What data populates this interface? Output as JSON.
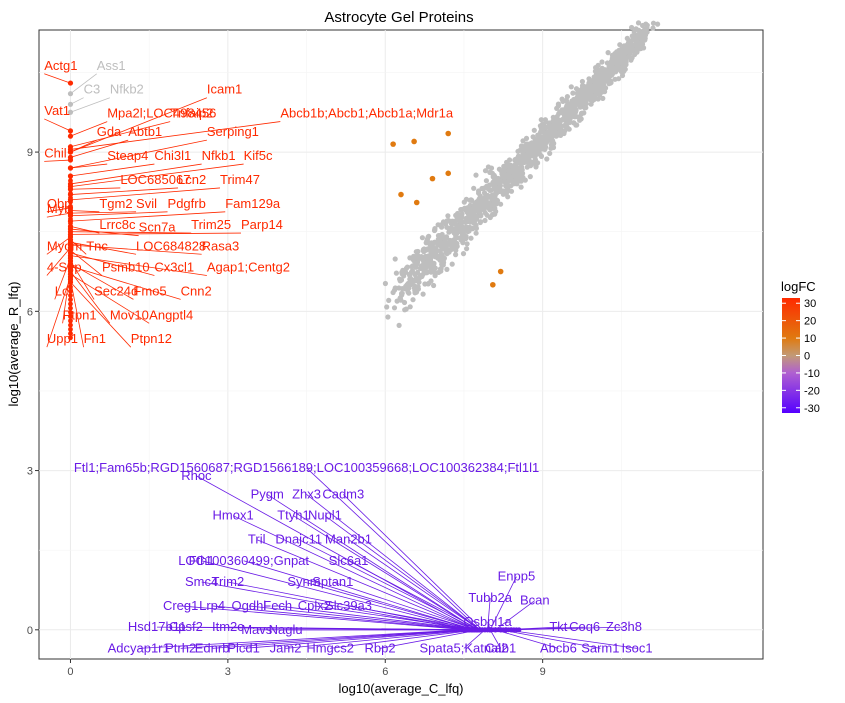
{
  "chart_data": {
    "type": "scatter",
    "title": "Astrocyte Gel Proteins",
    "xlabel": "log10(average_C_lfq)",
    "ylabel": "log10(average_R_lfq)",
    "xlim": [
      -0.6,
      13.2
    ],
    "ylim": [
      -0.55,
      11.3
    ],
    "x_ticks": [
      0,
      3,
      6,
      9
    ],
    "y_ticks": [
      0,
      3,
      6,
      9
    ],
    "grid": true,
    "legend": {
      "title": "logFC",
      "placement": "right",
      "ticks": [
        30,
        20,
        10,
        0,
        -10,
        -20,
        -30
      ],
      "min": -33,
      "max": 33,
      "colors": [
        "#5500ff",
        "#ff3300"
      ]
    },
    "colors": {
      "high": "#ff2a00",
      "mid": "#e07a10",
      "low": "#6a1be6",
      "unchanged": "#bebebe"
    },
    "cloud": {
      "x_start": 6.2,
      "x_end": 10.9,
      "intercept": -0.05,
      "slope": 1.03,
      "spread": 0.45,
      "n": 1400
    },
    "orange_points": [
      {
        "x": 6.15,
        "y": 9.15,
        "logFC": 9
      },
      {
        "x": 6.55,
        "y": 9.2,
        "logFC": 9
      },
      {
        "x": 6.9,
        "y": 8.5,
        "logFC": 5
      },
      {
        "x": 7.2,
        "y": 8.6,
        "logFC": 5
      },
      {
        "x": 6.3,
        "y": 8.2,
        "logFC": 6
      },
      {
        "x": 6.6,
        "y": 8.05,
        "logFC": 6
      },
      {
        "x": 7.2,
        "y": 9.35,
        "logFC": 7
      },
      {
        "x": 8.2,
        "y": 6.75,
        "logFC": 4
      },
      {
        "x": 8.05,
        "y": 6.5,
        "logFC": 5
      }
    ],
    "high_labels": [
      {
        "text": "Actg1",
        "x": -0.5,
        "y": 10.55,
        "gy": 10.3,
        "logFC": 29
      },
      {
        "text": "Ass1",
        "x": 0.5,
        "y": 10.55,
        "gy": 10.1,
        "logFC": 1
      },
      {
        "text": "C3",
        "x": 0.25,
        "y": 10.1,
        "gy": 9.9,
        "logFC": 1
      },
      {
        "text": "Nfkb2",
        "x": 0.75,
        "y": 10.1,
        "gy": 9.75,
        "logFC": 1
      },
      {
        "text": "Icam1",
        "x": 2.6,
        "y": 10.1,
        "gy": 9.0,
        "logFC": 29
      },
      {
        "text": "Vat1",
        "x": -0.5,
        "y": 9.7,
        "gy": 9.4,
        "logFC": 29
      },
      {
        "text": "Mpa2l;LOC498456",
        "x": 0.7,
        "y": 9.65,
        "gy": 9.3,
        "logFC": 29
      },
      {
        "text": "Tnfaip2",
        "x": 1.9,
        "y": 9.65,
        "gy": 9.1,
        "logFC": 29
      },
      {
        "text": "Abcb1b;Abcb1;Abcb1a;Mdr1a",
        "x": 4.0,
        "y": 9.65,
        "gy": 9.05,
        "logFC": 29
      },
      {
        "text": "Gda",
        "x": 0.5,
        "y": 9.3,
        "gy": 9.0,
        "logFC": 29
      },
      {
        "text": "Abtb1",
        "x": 1.1,
        "y": 9.3,
        "gy": 8.9,
        "logFC": 29
      },
      {
        "text": "Serping1",
        "x": 2.6,
        "y": 9.3,
        "gy": 8.7,
        "logFC": 29
      },
      {
        "text": "Chil",
        "x": -0.5,
        "y": 8.9,
        "gy": 8.85,
        "logFC": 29
      },
      {
        "text": "Steap4",
        "x": 0.7,
        "y": 8.85,
        "gy": 8.7,
        "logFC": 29
      },
      {
        "text": "Chi3l1",
        "x": 1.6,
        "y": 8.85,
        "gy": 8.55,
        "logFC": 29
      },
      {
        "text": "Nfkb1",
        "x": 2.5,
        "y": 8.85,
        "gy": 8.4,
        "logFC": 29
      },
      {
        "text": "Kif5c",
        "x": 3.3,
        "y": 8.85,
        "gy": 8.35,
        "logFC": 29
      },
      {
        "text": "LOC685067",
        "x": 0.95,
        "y": 8.4,
        "gy": 8.3,
        "logFC": 29
      },
      {
        "text": "Lcn2",
        "x": 2.05,
        "y": 8.4,
        "gy": 8.2,
        "logFC": 29
      },
      {
        "text": "Trim47",
        "x": 2.85,
        "y": 8.4,
        "gy": 8.1,
        "logFC": 29
      },
      {
        "text": "Obp",
        "x": -0.45,
        "y": 7.95,
        "gy": 7.95,
        "logFC": 29
      },
      {
        "text": "Myb",
        "x": -0.45,
        "y": 7.85,
        "gy": 7.85,
        "logFC": 29
      },
      {
        "text": "Tgm2",
        "x": 0.55,
        "y": 7.95,
        "gy": 7.9,
        "logFC": 29
      },
      {
        "text": "Svil",
        "x": 1.25,
        "y": 7.95,
        "gy": 7.85,
        "logFC": 29
      },
      {
        "text": "Pdgfrb",
        "x": 1.85,
        "y": 7.95,
        "gy": 7.8,
        "logFC": 29
      },
      {
        "text": "Fam129a",
        "x": 2.95,
        "y": 7.95,
        "gy": 7.7,
        "logFC": 29
      },
      {
        "text": "Lrrc8c",
        "x": 0.55,
        "y": 7.55,
        "gy": 7.6,
        "logFC": 29
      },
      {
        "text": "Scn7a",
        "x": 1.3,
        "y": 7.5,
        "gy": 7.55,
        "logFC": 29
      },
      {
        "text": "Trim25",
        "x": 2.3,
        "y": 7.55,
        "gy": 7.5,
        "logFC": 29
      },
      {
        "text": "Parp14",
        "x": 3.25,
        "y": 7.55,
        "gy": 7.45,
        "logFC": 29
      },
      {
        "text": "Myom",
        "x": -0.45,
        "y": 7.15,
        "gy": 7.4,
        "logFC": 29
      },
      {
        "text": "Tnc",
        "x": 0.3,
        "y": 7.15,
        "gy": 7.35,
        "logFC": 29
      },
      {
        "text": "LOC684828",
        "x": 1.25,
        "y": 7.15,
        "gy": 7.3,
        "logFC": 29
      },
      {
        "text": "Rasa3",
        "x": 2.5,
        "y": 7.15,
        "gy": 7.25,
        "logFC": 29
      },
      {
        "text": "4-Sep",
        "x": -0.45,
        "y": 6.75,
        "gy": 7.2,
        "logFC": 29
      },
      {
        "text": "Psmb10",
        "x": 0.6,
        "y": 6.75,
        "gy": 7.15,
        "logFC": 29
      },
      {
        "text": "Cx3cl1",
        "x": 1.6,
        "y": 6.75,
        "gy": 7.1,
        "logFC": 29
      },
      {
        "text": "Agap1;Centg2",
        "x": 2.6,
        "y": 6.75,
        "gy": 7.05,
        "logFC": 29
      },
      {
        "text": "Lc",
        "x": -0.3,
        "y": 6.3,
        "gy": 7.0,
        "logFC": 29
      },
      {
        "text": "Sec24d",
        "x": 0.45,
        "y": 6.3,
        "gy": 6.95,
        "logFC": 29
      },
      {
        "text": "Fmo5",
        "x": 1.2,
        "y": 6.3,
        "gy": 6.9,
        "logFC": 29
      },
      {
        "text": "Cnn2",
        "x": 2.1,
        "y": 6.3,
        "gy": 6.85,
        "logFC": 29
      },
      {
        "text": "Ptpn1",
        "x": -0.15,
        "y": 5.85,
        "gy": 6.8,
        "logFC": 29
      },
      {
        "text": "Mov10",
        "x": 0.75,
        "y": 5.85,
        "gy": 6.75,
        "logFC": 29
      },
      {
        "text": "Angptl4",
        "x": 1.5,
        "y": 5.85,
        "gy": 6.7,
        "logFC": 29
      },
      {
        "text": "Upp1",
        "x": -0.45,
        "y": 5.4,
        "gy": 6.65,
        "logFC": 29
      },
      {
        "text": "Fn1",
        "x": 0.25,
        "y": 5.4,
        "gy": 6.6,
        "logFC": 29
      },
      {
        "text": "Ptpn12",
        "x": 1.15,
        "y": 5.4,
        "gy": 6.55,
        "logFC": 29
      }
    ],
    "low_labels": [
      {
        "text": "Ftl1;Fam65b;RGD1560687;RGD1566189;LOC100359668;LOC100362384;Ftl1l1",
        "x": 4.5,
        "y": 3.05,
        "gx": 7.8,
        "logFC": -30
      },
      {
        "text": "Rhoc",
        "x": 2.4,
        "y": 2.9,
        "gx": 7.7,
        "logFC": -30
      },
      {
        "text": "Pygm",
        "x": 3.75,
        "y": 2.55,
        "gx": 7.75,
        "logFC": -30
      },
      {
        "text": "Zhx3",
        "x": 4.5,
        "y": 2.55,
        "gx": 7.8,
        "logFC": -30
      },
      {
        "text": "Cadm3",
        "x": 5.2,
        "y": 2.55,
        "gx": 7.85,
        "logFC": -30
      },
      {
        "text": "Hmox1",
        "x": 3.1,
        "y": 2.15,
        "gx": 7.7,
        "logFC": -30
      },
      {
        "text": "Ttyh1",
        "x": 4.25,
        "y": 2.15,
        "gx": 7.75,
        "logFC": -30
      },
      {
        "text": "Nupl1",
        "x": 4.85,
        "y": 2.15,
        "gx": 7.8,
        "logFC": -30
      },
      {
        "text": "Tril",
        "x": 3.55,
        "y": 1.7,
        "gx": 7.7,
        "logFC": -30
      },
      {
        "text": "Dnajc11",
        "x": 4.35,
        "y": 1.7,
        "gx": 7.75,
        "logFC": -30
      },
      {
        "text": "Man2b1",
        "x": 5.3,
        "y": 1.7,
        "gx": 7.8,
        "logFC": -30
      },
      {
        "text": "Fth1",
        "x": 2.5,
        "y": 1.3,
        "gx": 7.65,
        "logFC": -30
      },
      {
        "text": "LOC100360499;Gnpat",
        "x": 3.3,
        "y": 1.3,
        "gx": 7.7,
        "logFC": -30
      },
      {
        "text": "Slc6a1",
        "x": 5.3,
        "y": 1.3,
        "gx": 7.8,
        "logFC": -30
      },
      {
        "text": "Smc4",
        "x": 2.5,
        "y": 0.9,
        "gx": 7.6,
        "logFC": -30
      },
      {
        "text": "Trim2",
        "x": 3.0,
        "y": 0.9,
        "gx": 7.65,
        "logFC": -30
      },
      {
        "text": "Synm",
        "x": 4.45,
        "y": 0.9,
        "gx": 7.7,
        "logFC": -30
      },
      {
        "text": "Sptan1",
        "x": 5.0,
        "y": 0.9,
        "gx": 7.75,
        "logFC": -30
      },
      {
        "text": "Enpp5",
        "x": 8.5,
        "y": 1.0,
        "gx": 8.0,
        "logFC": -30
      },
      {
        "text": "Tubb2a",
        "x": 8.0,
        "y": 0.6,
        "gx": 7.95,
        "logFC": -30
      },
      {
        "text": "Bcan",
        "x": 8.85,
        "y": 0.55,
        "gx": 8.1,
        "logFC": -30
      },
      {
        "text": "Creg1",
        "x": 2.1,
        "y": 0.45,
        "gx": 7.55,
        "logFC": -30
      },
      {
        "text": "Lrp4",
        "x": 2.7,
        "y": 0.45,
        "gx": 7.6,
        "logFC": -30
      },
      {
        "text": "Ogdhl",
        "x": 3.4,
        "y": 0.45,
        "gx": 7.65,
        "logFC": -30
      },
      {
        "text": "Fech",
        "x": 3.95,
        "y": 0.45,
        "gx": 7.7,
        "logFC": -30
      },
      {
        "text": "Cplx2",
        "x": 4.65,
        "y": 0.45,
        "gx": 7.75,
        "logFC": -30
      },
      {
        "text": "Slc39a3",
        "x": 5.3,
        "y": 0.45,
        "gx": 7.8,
        "logFC": -30
      },
      {
        "text": "Osbpl1a",
        "x": 7.95,
        "y": 0.15,
        "gx": 8.0,
        "logFC": -30
      },
      {
        "text": "Hsd17b11",
        "x": 1.65,
        "y": 0.05,
        "gx": 7.5,
        "logFC": -30
      },
      {
        "text": "Cpsf2",
        "x": 2.2,
        "y": 0.05,
        "gx": 7.55,
        "logFC": -30
      },
      {
        "text": "Itm2c",
        "x": 3.0,
        "y": 0.05,
        "gx": 7.6,
        "logFC": -30
      },
      {
        "text": "Mavs",
        "x": 3.55,
        "y": 0.0,
        "gx": 7.65,
        "logFC": -30
      },
      {
        "text": "Naglu",
        "x": 4.1,
        "y": 0.0,
        "gx": 7.7,
        "logFC": -30
      },
      {
        "text": "Tkt",
        "x": 9.3,
        "y": 0.05,
        "gx": 8.2,
        "logFC": -30
      },
      {
        "text": "Coq6",
        "x": 9.8,
        "y": 0.05,
        "gx": 8.3,
        "logFC": -30
      },
      {
        "text": "Zc3h8",
        "x": 10.55,
        "y": 0.05,
        "gx": 8.4,
        "logFC": -30
      },
      {
        "text": "Adcyap1r1",
        "x": 1.3,
        "y": -0.35,
        "gx": 7.5,
        "logFC": -30
      },
      {
        "text": "Ptrh2",
        "x": 2.1,
        "y": -0.35,
        "gx": 7.55,
        "logFC": -30
      },
      {
        "text": "Ednrb",
        "x": 2.7,
        "y": -0.35,
        "gx": 7.6,
        "logFC": -30
      },
      {
        "text": "Plcd1",
        "x": 3.3,
        "y": -0.35,
        "gx": 7.65,
        "logFC": -30
      },
      {
        "text": "Jam2",
        "x": 4.1,
        "y": -0.35,
        "gx": 7.7,
        "logFC": -30
      },
      {
        "text": "Hmgcs2",
        "x": 4.95,
        "y": -0.35,
        "gx": 7.75,
        "logFC": -30
      },
      {
        "text": "Rbp2",
        "x": 5.9,
        "y": -0.35,
        "gx": 7.8,
        "logFC": -30
      },
      {
        "text": "Spata5;Katnal2",
        "x": 7.5,
        "y": -0.35,
        "gx": 7.9,
        "logFC": -30
      },
      {
        "text": "Cab1",
        "x": 8.2,
        "y": -0.35,
        "gx": 8.0,
        "logFC": -30
      },
      {
        "text": "Abcb6",
        "x": 9.3,
        "y": -0.35,
        "gx": 8.1,
        "logFC": -30
      },
      {
        "text": "Sarm1",
        "x": 10.1,
        "y": -0.35,
        "gx": 8.2,
        "logFC": -30
      },
      {
        "text": "Isoc1",
        "x": 10.8,
        "y": -0.35,
        "gx": 8.3,
        "logFC": -30
      }
    ]
  }
}
